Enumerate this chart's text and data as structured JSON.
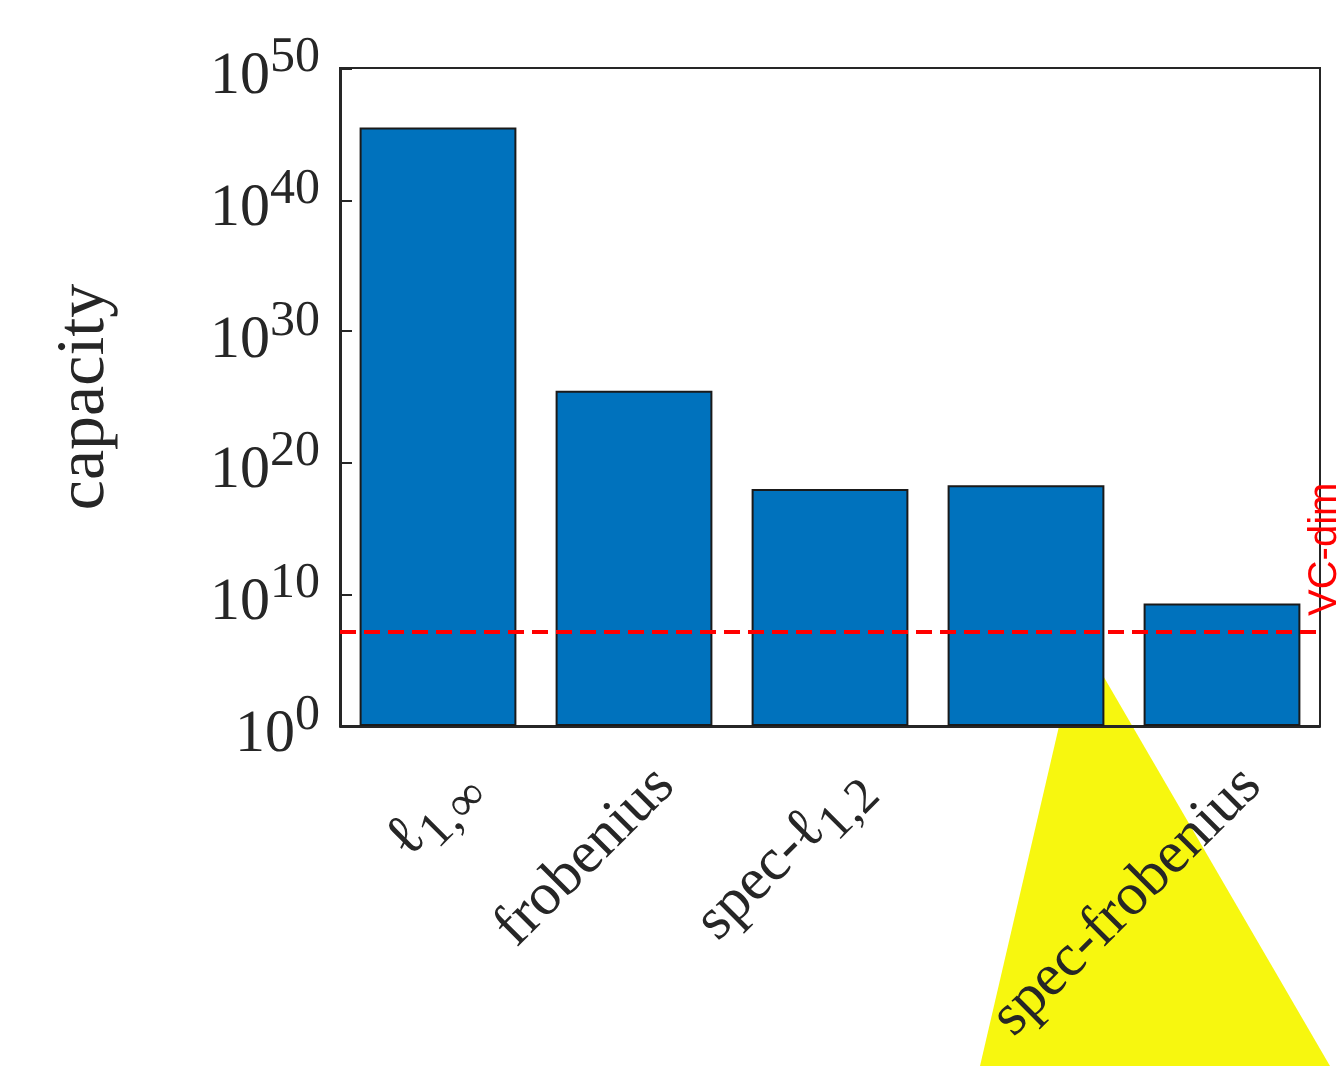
{
  "chart_data": {
    "type": "bar",
    "ylabel": "capacity",
    "categories": [
      "ℓ$_{1,∞}$",
      "frobenius",
      "spec-ℓ$_{1,2}$",
      null,
      "spec-frobenius"
    ],
    "values": [
      3e+45,
      3e+25,
      1e+18,
      2e+18,
      2000000000.0
    ],
    "color": "#0072bd",
    "log": true,
    "ylim": [
      1,
      1e+50
    ],
    "yticks": [
      {
        "value": 1,
        "label": "10$^{0}$"
      },
      {
        "value": 10000000000.0,
        "label": "10$^{10}$"
      },
      {
        "value": 1e+20,
        "label": "10$^{20}$"
      },
      {
        "value": 1e+30,
        "label": "10$^{30}$"
      },
      {
        "value": 1e+40,
        "label": "10$^{40}$"
      },
      {
        "value": 1e+50,
        "label": "10$^{50}$"
      }
    ],
    "ref_lines": [
      {
        "axis": "y",
        "value": 14000000.0,
        "label": "VC-dim",
        "color": "#ff0000",
        "line_style": "dashed"
      }
    ],
    "grid": false
  }
}
